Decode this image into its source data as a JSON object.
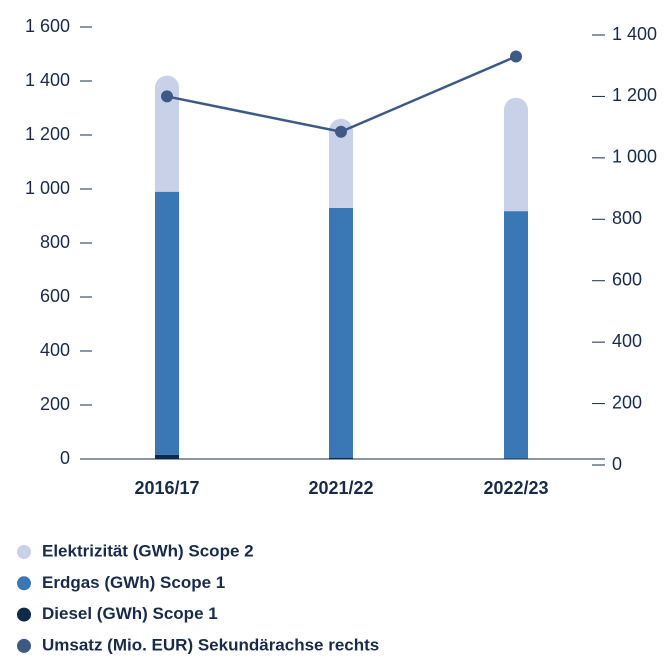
{
  "chart_data": {
    "type": "bar",
    "categories": [
      "2016/17",
      "2021/22",
      "2022/23"
    ],
    "series": [
      {
        "name": "Elektrizität (GWh) Scope 2",
        "color": "#c8d1e8",
        "values": [
          430,
          330,
          420
        ]
      },
      {
        "name": "Erdgas (GWh) Scope 1",
        "color": "#3a78b5",
        "values": [
          975,
          925,
          915
        ]
      },
      {
        "name": "Diesel (GWh) Scope 1",
        "color": "#0e2a4a",
        "values": [
          15,
          5,
          3
        ]
      },
      {
        "name": "Umsatz (Mio. EUR) Sekundärachse rechts",
        "color": "#3d5a85",
        "values": [
          1200,
          1085,
          1330
        ],
        "type": "line",
        "axis": "y2"
      }
    ],
    "ylim": [
      0,
      1600
    ],
    "yticks": [
      0,
      200,
      400,
      600,
      800,
      {
        "value": 1000,
        "label": "1 000"
      },
      {
        "value": 1200,
        "label": "1 200"
      },
      {
        "value": 1400,
        "label": "1 400"
      },
      {
        "value": 1600,
        "label": "1 600"
      }
    ],
    "y2lim": [
      0,
      1400
    ],
    "y2ticks": [
      0,
      200,
      400,
      600,
      800,
      {
        "value": 1000,
        "label": "1 000"
      },
      {
        "value": 1200,
        "label": "1 200"
      },
      {
        "value": 1400,
        "label": "1 400"
      }
    ],
    "stacked": true
  }
}
